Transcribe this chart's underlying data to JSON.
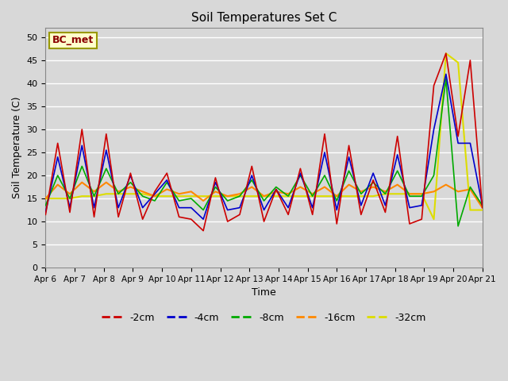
{
  "title": "Soil Temperatures Set C",
  "xlabel": "Time",
  "ylabel": "Soil Temperature (C)",
  "ylim": [
    0,
    52
  ],
  "yticks": [
    0,
    5,
    10,
    15,
    20,
    25,
    30,
    35,
    40,
    45,
    50
  ],
  "background_color": "#d8d8d8",
  "plot_bg_color": "#d8d8d8",
  "grid_color": "#ffffff",
  "series_colors": {
    "-2cm": "#cc0000",
    "-4cm": "#0000cc",
    "-8cm": "#00aa00",
    "-16cm": "#ff8800",
    "-32cm": "#dddd00"
  },
  "watermark_text": "BC_met",
  "xtick_labels": [
    "Apr 6",
    "Apr 7",
    "Apr 8",
    "Apr 9",
    "Apr 10",
    "Apr 11",
    "Apr 12",
    "Apr 13",
    "Apr 14",
    "Apr 15",
    "Apr 16",
    "Apr 17",
    "Apr 18",
    "Apr 19",
    "Apr 20",
    "Apr 21"
  ],
  "data_2cm": [
    11.5,
    27.0,
    12.0,
    30.0,
    11.0,
    29.0,
    11.0,
    20.5,
    10.5,
    16.5,
    20.5,
    11.0,
    10.5,
    8.0,
    19.5,
    10.0,
    11.5,
    22.0,
    10.0,
    17.0,
    11.5,
    21.5,
    11.5,
    29.0,
    9.5,
    26.5,
    11.5,
    19.0,
    12.0,
    28.5,
    9.5,
    10.5,
    39.5,
    46.5,
    28.5,
    45.0,
    13.0
  ],
  "data_4cm": [
    12.0,
    24.0,
    13.0,
    26.5,
    13.0,
    25.5,
    13.0,
    20.0,
    13.0,
    16.0,
    19.0,
    13.0,
    13.0,
    10.5,
    18.5,
    12.5,
    13.0,
    20.0,
    12.5,
    17.0,
    13.0,
    20.5,
    13.0,
    25.0,
    12.5,
    24.0,
    13.5,
    20.5,
    13.5,
    24.5,
    13.0,
    13.5,
    30.0,
    42.0,
    27.0,
    27.0,
    13.5
  ],
  "data_8cm": [
    13.5,
    20.0,
    15.0,
    22.0,
    15.5,
    21.5,
    16.0,
    18.5,
    15.5,
    14.5,
    18.5,
    14.5,
    15.0,
    12.5,
    17.5,
    14.5,
    15.5,
    19.0,
    14.5,
    17.5,
    15.5,
    20.0,
    15.5,
    20.0,
    14.5,
    21.0,
    16.0,
    18.5,
    16.0,
    21.0,
    15.5,
    15.5,
    20.0,
    41.0,
    9.0,
    17.5,
    13.5
  ],
  "data_16cm": [
    15.0,
    18.0,
    16.0,
    18.5,
    16.5,
    18.5,
    16.5,
    17.5,
    16.5,
    15.5,
    17.0,
    16.0,
    16.5,
    14.5,
    16.5,
    15.5,
    16.0,
    17.5,
    15.5,
    16.5,
    16.0,
    17.5,
    16.0,
    17.5,
    15.5,
    18.0,
    16.5,
    17.5,
    16.5,
    18.0,
    16.0,
    16.0,
    16.5,
    18.0,
    16.5,
    17.0,
    13.0
  ],
  "data_32cm": [
    15.0,
    15.0,
    15.0,
    15.5,
    15.5,
    16.0,
    16.0,
    16.0,
    16.0,
    15.5,
    15.5,
    15.5,
    15.5,
    15.5,
    15.5,
    15.5,
    15.5,
    15.5,
    15.5,
    15.5,
    15.5,
    15.5,
    15.5,
    15.5,
    15.5,
    15.5,
    15.5,
    15.5,
    16.0,
    16.0,
    16.0,
    16.0,
    10.5,
    46.5,
    44.5,
    12.5,
    12.5
  ]
}
